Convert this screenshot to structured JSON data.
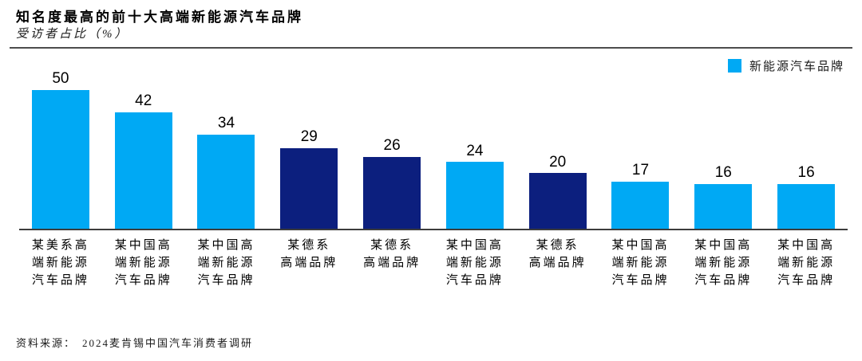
{
  "header": {
    "title": "知名度最高的前十大高端新能源汽车品牌",
    "subtitle": "受访者占比（%）"
  },
  "legend": {
    "label": "新能源汽车品牌",
    "color": "#00A9F4"
  },
  "footer": {
    "source_label": "资料来源：",
    "source_text": "2024麦肯锡中国汽车消费者调研"
  },
  "colors": {
    "light_blue": "#00A9F4",
    "dark_blue": "#0C1F7E",
    "axis": "#3c3c3c"
  },
  "chart_data": {
    "type": "bar",
    "title": "知名度最高的前十大高端新能源汽车品牌",
    "ylabel": "受访者占比（%）",
    "xlabel": "",
    "ylim": [
      0,
      50
    ],
    "grid": false,
    "legend_position": "top-right",
    "legend_entries": [
      "新能源汽车品牌"
    ],
    "categories": [
      "某美系高端新能源汽车品牌",
      "某中国高端新能源汽车品牌",
      "某中国高端新能源汽车品牌",
      "某德系高端品牌",
      "某德系高端品牌",
      "某中国高端新能源汽车品牌",
      "某德系高端品牌",
      "某中国高端新能源汽车品牌",
      "某中国高端新能源汽车品牌",
      "某中国高端新能源汽车品牌"
    ],
    "category_display_lines": [
      [
        "某美系高",
        "端新能源",
        "汽车品牌"
      ],
      [
        "某中国高",
        "端新能源",
        "汽车品牌"
      ],
      [
        "某中国高",
        "端新能源",
        "汽车品牌"
      ],
      [
        "某德系",
        "高端品牌"
      ],
      [
        "某德系",
        "高端品牌"
      ],
      [
        "某中国高",
        "端新能源",
        "汽车品牌"
      ],
      [
        "某德系",
        "高端品牌"
      ],
      [
        "某中国高",
        "端新能源",
        "汽车品牌"
      ],
      [
        "某中国高",
        "端新能源",
        "汽车品牌"
      ],
      [
        "某中国高",
        "端新能源",
        "汽车品牌"
      ]
    ],
    "values": [
      50,
      42,
      34,
      29,
      26,
      24,
      20,
      17,
      16,
      16
    ],
    "bar_colors": [
      "#00A9F4",
      "#00A9F4",
      "#00A9F4",
      "#0C1F7E",
      "#0C1F7E",
      "#00A9F4",
      "#0C1F7E",
      "#00A9F4",
      "#00A9F4",
      "#00A9F4"
    ]
  }
}
